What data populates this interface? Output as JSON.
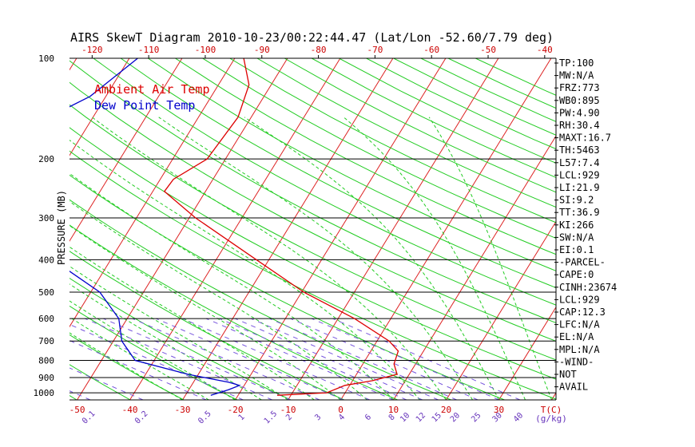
{
  "chart_data": {
    "type": "line",
    "subtype": "skew-t log-p diagram",
    "title": "AIRS SkewT Diagram 2010-10-23/00:22:44.47 (Lat/Lon -52.60/7.79 deg)",
    "ylabel": "PRESSURE (MB)",
    "xlabel": "T(C)",
    "mixing_ratio_label": "(g/kg)",
    "y_scale": "log",
    "ylim": [
      1050,
      100
    ],
    "xlim": [
      -52,
      47
    ],
    "top_xlim": [
      -124,
      -38
    ],
    "grid": true,
    "legend_position": "top-left",
    "pressure_ticks": [
      100,
      200,
      300,
      400,
      500,
      600,
      700,
      800,
      900,
      1000
    ],
    "pressure_tick_labels": [
      "100",
      "200",
      "300",
      "400",
      "500",
      "600",
      "700",
      "800",
      "900",
      "1000"
    ],
    "bottom_temp_ticks": [
      -50,
      -40,
      -30,
      -20,
      -10,
      0,
      10,
      20,
      30
    ],
    "bottom_temp_labels": [
      "-50",
      "-40",
      "-30",
      "-20",
      "-10",
      "0",
      "10",
      "20",
      "30"
    ],
    "top_temp_ticks": [
      -120,
      -110,
      -100,
      -90,
      -80,
      -70,
      -60,
      -50,
      -40
    ],
    "top_temp_labels": [
      "-120",
      "-110",
      "-100",
      "-90",
      "-80",
      "-70",
      "-60",
      "-50",
      "-40"
    ],
    "mixing_ratio_labels": [
      {
        "text": "0.1",
        "temp_c": -47.5
      },
      {
        "text": "0.2",
        "temp_c": -37.5
      },
      {
        "text": "0.5",
        "temp_c": -25.5
      },
      {
        "text": "1",
        "temp_c": -18.5
      },
      {
        "text": "1.5",
        "temp_c": -13
      },
      {
        "text": "2",
        "temp_c": -9.5
      },
      {
        "text": "3",
        "temp_c": -4
      },
      {
        "text": "4",
        "temp_c": 0.5
      },
      {
        "text": "6",
        "temp_c": 5.5
      },
      {
        "text": "8",
        "temp_c": 10
      },
      {
        "text": "10",
        "temp_c": 12.5
      },
      {
        "text": "12",
        "temp_c": 15.5
      },
      {
        "text": "15",
        "temp_c": 18.5
      },
      {
        "text": "20",
        "temp_c": 22
      },
      {
        "text": "25",
        "temp_c": 26
      },
      {
        "text": "30",
        "temp_c": 30
      },
      {
        "text": "40",
        "temp_c": 34
      }
    ],
    "series": [
      {
        "name": "Ambient Air Temp",
        "color": "#dd0000",
        "points": [
          {
            "p": 1017,
            "t": -12.6
          },
          {
            "p": 1000,
            "t": -3.5
          },
          {
            "p": 950,
            "t": -0.9
          },
          {
            "p": 920,
            "t": 3.8
          },
          {
            "p": 880,
            "t": 7.7
          },
          {
            "p": 820,
            "t": 5.9
          },
          {
            "p": 750,
            "t": 5.2
          },
          {
            "p": 700,
            "t": 2.3
          },
          {
            "p": 600,
            "t": -6.9
          },
          {
            "p": 500,
            "t": -19.6
          },
          {
            "p": 400,
            "t": -32.4
          },
          {
            "p": 300,
            "t": -48.8
          },
          {
            "p": 250,
            "t": -57.8
          },
          {
            "p": 230,
            "t": -57.5
          },
          {
            "p": 200,
            "t": -53.5
          },
          {
            "p": 150,
            "t": -52.5
          },
          {
            "p": 120,
            "t": -54.2
          },
          {
            "p": 100,
            "t": -58.3
          }
        ]
      },
      {
        "name": "Dew Point Temp",
        "color": "#0000cc",
        "points": [
          {
            "p": 1017,
            "t": -25.2
          },
          {
            "p": 980,
            "t": -22.5
          },
          {
            "p": 950,
            "t": -20.9
          },
          {
            "p": 930,
            "t": -23.3
          },
          {
            "p": 880,
            "t": -32.0
          },
          {
            "p": 800,
            "t": -43.6
          },
          {
            "p": 700,
            "t": -48.4
          },
          {
            "p": 600,
            "t": -51.6
          },
          {
            "p": 500,
            "t": -58.3
          },
          {
            "p": 400,
            "t": -71.0
          },
          {
            "p": 300,
            "t": -84.2
          },
          {
            "p": 200,
            "t": -92.0
          },
          {
            "p": 150,
            "t": -88.4
          },
          {
            "p": 130,
            "t": -83.0
          },
          {
            "p": 100,
            "t": -78.4
          }
        ]
      }
    ],
    "legend": [
      {
        "label": "Ambient Air Temp",
        "color": "#dd0000"
      },
      {
        "label": "Dew Point Temp",
        "color": "#0000cc"
      }
    ],
    "indices": [
      "TP:100",
      "MW:N/A",
      "FRZ:773",
      "WB0:895",
      "PW:4.90",
      "RH:30.4",
      "MAXT:16.7",
      "TH:5463",
      "L57:7.4",
      "LCL:929",
      "LI:21.9",
      "SI:9.2",
      "TT:36.9",
      "KI:266",
      "SW:N/A",
      "EI:0.1",
      "-PARCEL-",
      "CAPE:0",
      "CINH:23674",
      "LCL:929",
      "CAP:12.3",
      "LFC:N/A",
      "EL:N/A",
      "MPL:N/A",
      "-WIND-",
      "NOT",
      "AVAIL"
    ],
    "colors": {
      "isotherm": "#dd2222",
      "dry_adiabat": "#22cc22",
      "moist_adiabat": "#22cc22",
      "mixing_ratio": "#7755dd",
      "isobar": "#000000",
      "text": "#000000",
      "temp_axis_text": "#cc0000",
      "mixing_axis_text": "#6633bb"
    }
  }
}
